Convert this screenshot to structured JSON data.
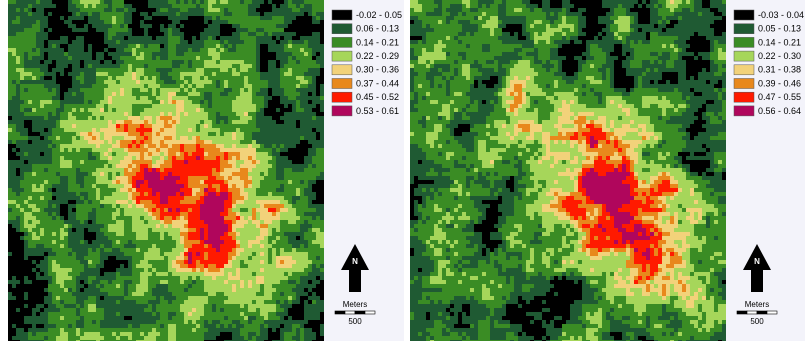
{
  "maps": [
    {
      "legend": [
        {
          "label": "-0.02 - 0.05",
          "color": "#000000"
        },
        {
          "label": "0.06 - 0.13",
          "color": "#1f5a33"
        },
        {
          "label": "0.14 - 0.21",
          "color": "#3a8c24"
        },
        {
          "label": "0.22 - 0.29",
          "color": "#a6d65a"
        },
        {
          "label": "0.30 - 0.36",
          "color": "#f2d27a"
        },
        {
          "label": "0.37 - 0.44",
          "color": "#e8881c"
        },
        {
          "label": "0.45 - 0.52",
          "color": "#ff1a00"
        },
        {
          "label": "0.53 - 0.61",
          "color": "#b0065c"
        }
      ],
      "north_label": "N",
      "scale_unit": "Meters",
      "scale_value": "500"
    },
    {
      "legend": [
        {
          "label": "-0.03 - 0.04",
          "color": "#000000"
        },
        {
          "label": "0.05 - 0.13",
          "color": "#1f5a33"
        },
        {
          "label": "0.14 - 0.21",
          "color": "#3a8c24"
        },
        {
          "label": "0.22 - 0.30",
          "color": "#a6d65a"
        },
        {
          "label": "0.31 - 0.38",
          "color": "#f2d27a"
        },
        {
          "label": "0.39 - 0.46",
          "color": "#e8881c"
        },
        {
          "label": "0.47 - 0.55",
          "color": "#ff1a00"
        },
        {
          "label": "0.56 - 0.64",
          "color": "#b0065c"
        }
      ],
      "north_label": "N",
      "scale_unit": "Meters",
      "scale_value": "500"
    }
  ]
}
